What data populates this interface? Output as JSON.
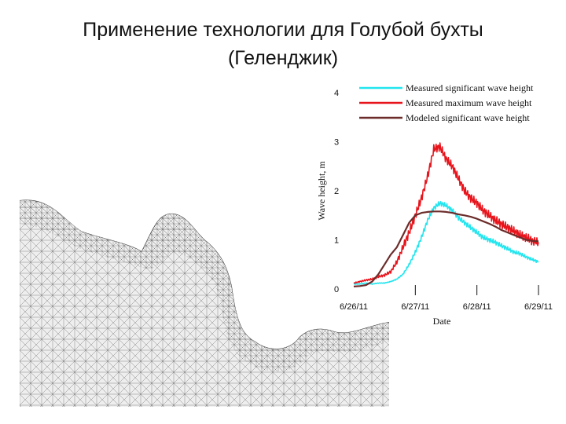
{
  "slide": {
    "title_line1": "Применение технологии для Голубой бухты",
    "title_line2": "(Геленджик)"
  },
  "mesh_figure": {
    "land_color": "#ffffff",
    "water_color": "#eeeeee",
    "mesh_color": "#555555"
  },
  "chart_data": {
    "type": "line",
    "ylabel": "Wave height, m",
    "xlabel": "Date",
    "y_ticks": [
      "0",
      "1",
      "2",
      "3",
      "4"
    ],
    "ylim": [
      0,
      4
    ],
    "x_tick_labels": [
      "6/26/11",
      "6/27/11",
      "6/28/11",
      "6/29/11"
    ],
    "xlim": [
      0,
      3
    ],
    "legend_position": "top-right",
    "series": [
      {
        "name": "Measured significant wave height",
        "color": "#22e5ee",
        "x": [
          0.0,
          0.1,
          0.2,
          0.3,
          0.4,
          0.5,
          0.6,
          0.7,
          0.8,
          0.9,
          1.0,
          1.1,
          1.2,
          1.3,
          1.4,
          1.5,
          1.6,
          1.7,
          1.8,
          1.9,
          2.0,
          2.1,
          2.2,
          2.3,
          2.4,
          2.5,
          2.6,
          2.7,
          2.8,
          2.9,
          3.0
        ],
        "y": [
          0.1,
          0.1,
          0.12,
          0.1,
          0.12,
          0.12,
          0.15,
          0.2,
          0.3,
          0.5,
          0.75,
          1.05,
          1.4,
          1.65,
          1.75,
          1.7,
          1.6,
          1.45,
          1.35,
          1.25,
          1.15,
          1.05,
          1.0,
          0.95,
          0.88,
          0.82,
          0.75,
          0.72,
          0.65,
          0.6,
          0.55
        ]
      },
      {
        "name": "Measured maximum wave height",
        "color": "#e8141c",
        "x": [
          0.0,
          0.1,
          0.2,
          0.3,
          0.4,
          0.5,
          0.6,
          0.7,
          0.8,
          0.9,
          1.0,
          1.1,
          1.2,
          1.3,
          1.4,
          1.5,
          1.6,
          1.7,
          1.8,
          1.9,
          2.0,
          2.1,
          2.2,
          2.3,
          2.4,
          2.5,
          2.6,
          2.7,
          2.8,
          2.9,
          3.0
        ],
        "y": [
          0.12,
          0.15,
          0.18,
          0.2,
          0.25,
          0.28,
          0.35,
          0.55,
          0.85,
          1.15,
          1.5,
          1.85,
          2.3,
          2.85,
          2.9,
          2.65,
          2.5,
          2.25,
          2.0,
          1.85,
          1.75,
          1.6,
          1.5,
          1.4,
          1.32,
          1.25,
          1.18,
          1.1,
          1.05,
          0.98,
          0.95
        ]
      },
      {
        "name": "Modeled significant wave height",
        "color": "#6b2c2a",
        "x": [
          0.0,
          0.1,
          0.2,
          0.3,
          0.4,
          0.5,
          0.6,
          0.7,
          0.8,
          0.9,
          1.0,
          1.1,
          1.2,
          1.3,
          1.4,
          1.5,
          1.6,
          1.7,
          1.8,
          1.9,
          2.0,
          2.1,
          2.2,
          2.3,
          2.4,
          2.5,
          2.6,
          2.7,
          2.8,
          2.9,
          3.0
        ],
        "y": [
          0.05,
          0.06,
          0.08,
          0.15,
          0.3,
          0.5,
          0.7,
          0.85,
          1.1,
          1.35,
          1.5,
          1.55,
          1.57,
          1.58,
          1.58,
          1.57,
          1.55,
          1.52,
          1.5,
          1.47,
          1.43,
          1.38,
          1.33,
          1.27,
          1.2,
          1.15,
          1.1,
          1.05,
          1.0,
          0.98,
          0.97
        ]
      }
    ]
  }
}
